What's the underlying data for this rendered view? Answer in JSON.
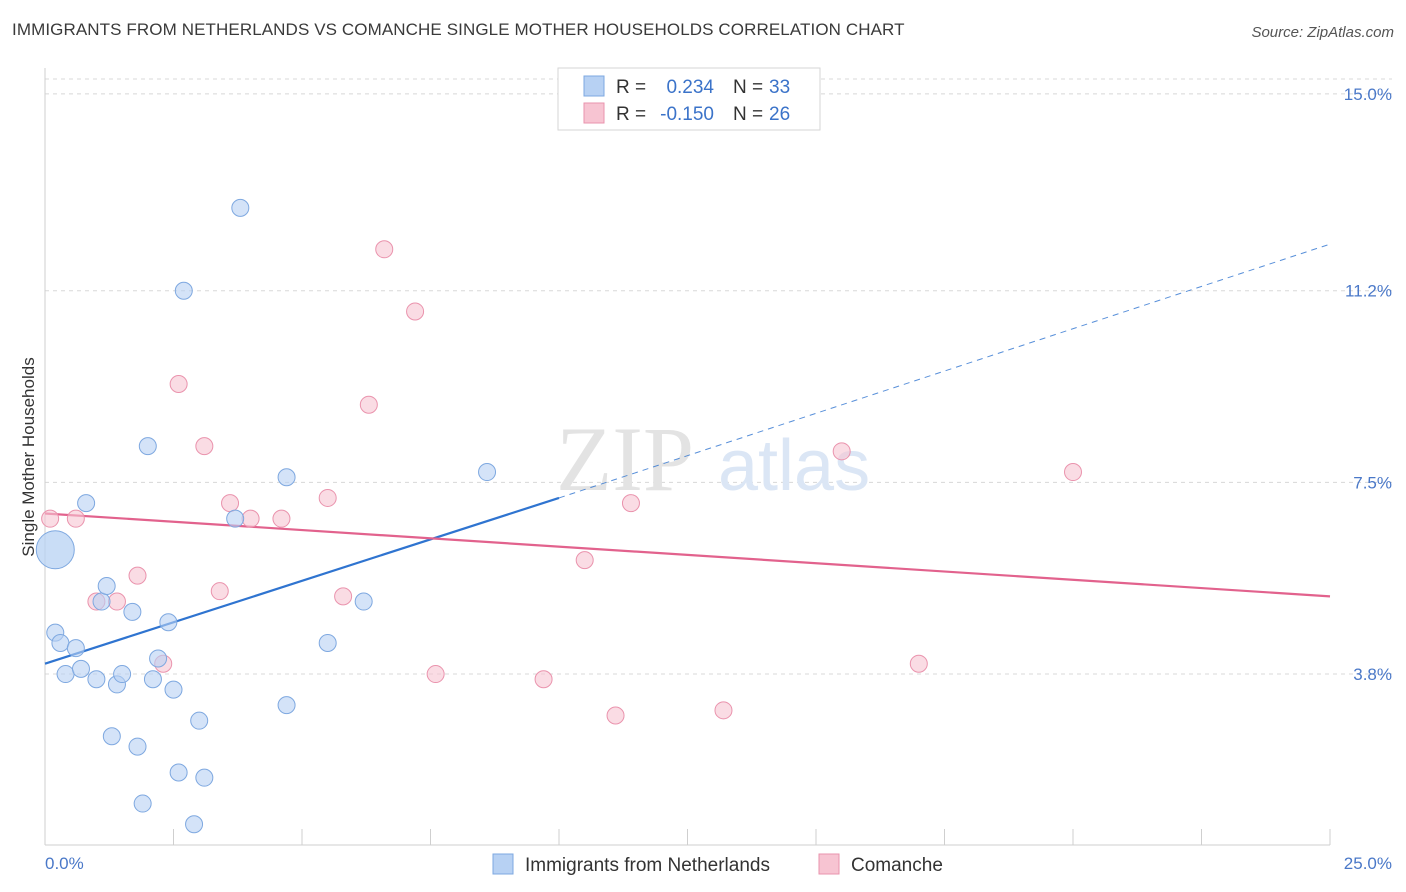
{
  "title": "IMMIGRANTS FROM NETHERLANDS VS COMANCHE SINGLE MOTHER HOUSEHOLDS CORRELATION CHART",
  "source": "Source: ZipAtlas.com",
  "watermark": {
    "zip": "ZIP",
    "atlas": "atlas"
  },
  "colors": {
    "blue_fill": "#b7d1f3",
    "blue_stroke": "#7ea8e0",
    "blue_line": "#2f74d0",
    "pink_fill": "#f7c4d2",
    "pink_stroke": "#ea93ad",
    "pink_line": "#e2628d",
    "value_text": "#3b73c9",
    "grid": "#d8d8d8"
  },
  "legend": {
    "rows": [
      {
        "r_label": "R =",
        "r_value": "0.234",
        "n_label": "N =",
        "n_value": "33"
      },
      {
        "r_label": "R =",
        "r_value": "-0.150",
        "n_label": "N =",
        "n_value": "26"
      }
    ]
  },
  "chart_data": {
    "type": "scatter",
    "xlabel": "",
    "ylabel": "Single Mother Households",
    "xlim": [
      0,
      25
    ],
    "ylim": [
      0.5,
      15.5
    ],
    "x_tick_labels": [
      "0.0%",
      "25.0%"
    ],
    "y_ticks": [
      3.8,
      7.5,
      11.2,
      15.0
    ],
    "y_tick_labels": [
      "3.8%",
      "7.5%",
      "11.2%",
      "15.0%"
    ],
    "grid": "horizontal dashed",
    "legend_position": "top-center",
    "series": [
      {
        "name": "Immigrants from Netherlands",
        "color": "#b7d1f3",
        "points": [
          [
            0.2,
            6.2,
            "large"
          ],
          [
            0.2,
            4.6
          ],
          [
            0.3,
            4.4
          ],
          [
            0.4,
            3.8
          ],
          [
            0.6,
            4.3
          ],
          [
            0.7,
            3.9
          ],
          [
            0.8,
            7.1
          ],
          [
            1.0,
            3.7
          ],
          [
            1.1,
            5.2
          ],
          [
            1.2,
            5.5
          ],
          [
            1.3,
            2.6
          ],
          [
            1.4,
            3.6
          ],
          [
            1.5,
            3.8
          ],
          [
            1.7,
            5.0
          ],
          [
            1.8,
            2.4
          ],
          [
            1.9,
            1.3
          ],
          [
            2.0,
            8.2
          ],
          [
            2.1,
            3.7
          ],
          [
            2.2,
            4.1
          ],
          [
            2.4,
            4.8
          ],
          [
            2.5,
            3.5
          ],
          [
            2.6,
            1.9
          ],
          [
            2.7,
            11.2
          ],
          [
            2.9,
            0.9
          ],
          [
            3.0,
            2.9
          ],
          [
            3.1,
            1.8
          ],
          [
            3.7,
            6.8
          ],
          [
            3.8,
            12.8
          ],
          [
            4.7,
            7.6
          ],
          [
            4.7,
            3.2
          ],
          [
            5.5,
            4.4
          ],
          [
            6.2,
            5.2
          ],
          [
            8.6,
            7.7
          ]
        ],
        "trend": {
          "x0": 0,
          "y0": 4.0,
          "x1": 10,
          "y1": 7.2,
          "dashed_to_x": 25,
          "dashed_to_y": 12.1
        }
      },
      {
        "name": "Comanche",
        "color": "#f7c4d2",
        "points": [
          [
            0.1,
            6.8
          ],
          [
            0.6,
            6.8
          ],
          [
            1.0,
            5.2
          ],
          [
            1.4,
            5.2
          ],
          [
            1.8,
            5.7
          ],
          [
            2.3,
            4.0
          ],
          [
            2.6,
            9.4
          ],
          [
            3.1,
            8.2
          ],
          [
            3.4,
            5.4
          ],
          [
            3.6,
            7.1
          ],
          [
            4.0,
            6.8
          ],
          [
            4.6,
            6.8
          ],
          [
            5.5,
            7.2
          ],
          [
            5.8,
            5.3
          ],
          [
            6.3,
            9.0
          ],
          [
            6.6,
            12.0
          ],
          [
            7.2,
            10.8
          ],
          [
            7.6,
            3.8
          ],
          [
            9.7,
            3.7
          ],
          [
            10.5,
            6.0
          ],
          [
            11.1,
            3.0
          ],
          [
            11.4,
            7.1
          ],
          [
            13.2,
            3.1
          ],
          [
            15.5,
            8.1
          ],
          [
            17.0,
            4.0
          ],
          [
            20.0,
            7.7
          ]
        ],
        "trend": {
          "x0": 0,
          "y0": 6.9,
          "x1": 25,
          "y1": 5.3
        }
      }
    ]
  }
}
